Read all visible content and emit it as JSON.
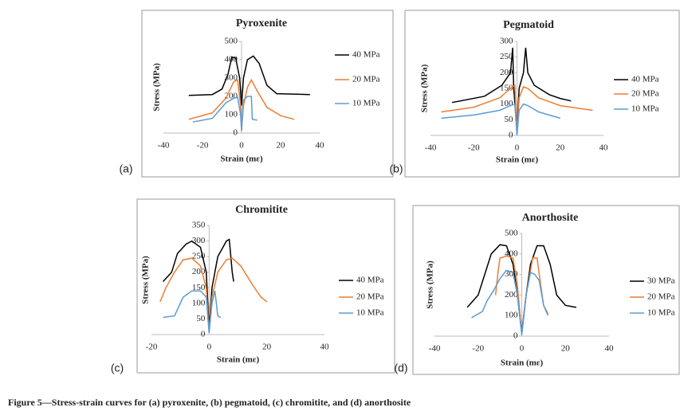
{
  "chart_data": [
    {
      "type": "line",
      "label": "(a)",
      "title": "Pyroxenite",
      "x_label": "Strain (mε)",
      "y_label": "Stress (MPa)",
      "xlim": [
        -40,
        40
      ],
      "ylim": [
        0,
        500
      ],
      "xticks": [
        -40,
        -20,
        0,
        20,
        40
      ],
      "yticks": [
        0,
        100,
        200,
        300,
        400,
        500
      ],
      "series": [
        {
          "name": "40 MPa",
          "color": "#000000",
          "x": [
            -27,
            -15,
            -10,
            -7,
            -5,
            -3,
            -1,
            0,
            1,
            3,
            6,
            9,
            13,
            18,
            35
          ],
          "values": [
            205,
            210,
            240,
            320,
            415,
            410,
            300,
            150,
            300,
            400,
            420,
            380,
            260,
            215,
            210
          ]
        },
        {
          "name": "20 MPa",
          "color": "#ed7d31",
          "x": [
            -27,
            -15,
            -8,
            -4,
            -2,
            -0.5,
            0,
            1,
            3,
            5,
            8,
            13,
            20,
            27
          ],
          "values": [
            75,
            110,
            190,
            280,
            290,
            150,
            20,
            150,
            250,
            290,
            230,
            140,
            95,
            75
          ]
        },
        {
          "name": "10 MPa",
          "color": "#5b9bd5",
          "x": [
            -25,
            -15,
            -8,
            -4,
            -2,
            -0.5,
            0,
            0.5,
            1,
            3,
            5,
            5.5,
            8
          ],
          "values": [
            60,
            80,
            165,
            190,
            195,
            100,
            10,
            100,
            180,
            200,
            200,
            75,
            70
          ]
        }
      ]
    },
    {
      "type": "line",
      "label": "(b)",
      "title": "Pegmatoid",
      "x_label": "Strain (mε)",
      "y_label": "Stress (MPa)",
      "xlim": [
        -40,
        40
      ],
      "ylim": [
        0,
        300
      ],
      "xticks": [
        -40,
        -20,
        0,
        20,
        40
      ],
      "yticks": [
        0,
        50,
        100,
        150,
        200,
        250,
        300
      ],
      "series": [
        {
          "name": "40 MPa",
          "color": "#000000",
          "x": [
            -30,
            -15,
            -7,
            -3,
            -2,
            -1.5,
            0,
            1,
            3,
            4,
            5,
            8,
            15,
            20,
            25
          ],
          "values": [
            105,
            125,
            160,
            200,
            280,
            150,
            20,
            150,
            200,
            280,
            200,
            160,
            130,
            118,
            110
          ]
        },
        {
          "name": "20 MPa",
          "color": "#ed7d31",
          "x": [
            -35,
            -20,
            -8,
            -3,
            -1,
            0,
            1,
            3,
            5,
            10,
            20,
            35
          ],
          "values": [
            75,
            90,
            120,
            150,
            160,
            10,
            120,
            155,
            150,
            120,
            95,
            80
          ]
        },
        {
          "name": "10 MPa",
          "color": "#5b9bd5",
          "x": [
            -35,
            -20,
            -8,
            -3,
            -1,
            0,
            1,
            3,
            5,
            10,
            20
          ],
          "values": [
            55,
            65,
            80,
            95,
            100,
            0,
            80,
            100,
            95,
            75,
            55
          ]
        }
      ]
    },
    {
      "type": "line",
      "label": "(c)",
      "title": "Chromitite",
      "x_label": "Strain (mε)",
      "y_label": "Stress (MPa)",
      "xlim": [
        -20,
        40
      ],
      "ylim": [
        0,
        350
      ],
      "xticks": [
        -20,
        0,
        20,
        40
      ],
      "yticks": [
        0,
        50,
        100,
        150,
        200,
        250,
        300,
        350
      ],
      "series": [
        {
          "name": "40 MPa",
          "color": "#000000",
          "x": [
            -16,
            -13,
            -11,
            -8,
            -6,
            -3,
            -1,
            0,
            1,
            3,
            6,
            7,
            8,
            8.5
          ],
          "values": [
            170,
            200,
            260,
            290,
            300,
            280,
            200,
            20,
            150,
            250,
            300,
            305,
            200,
            170
          ]
        },
        {
          "name": "20 MPa",
          "color": "#ed7d31",
          "x": [
            -17,
            -15,
            -12,
            -9,
            -6,
            -3,
            -1,
            0,
            1,
            3,
            6,
            8,
            11,
            15,
            18,
            20
          ],
          "values": [
            105,
            150,
            200,
            240,
            245,
            220,
            150,
            10,
            120,
            200,
            240,
            245,
            220,
            160,
            120,
            105
          ]
        },
        {
          "name": "10 MPa",
          "color": "#5b9bd5",
          "x": [
            -16,
            -12,
            -9,
            -6,
            -3,
            -1,
            0,
            1,
            2,
            3,
            4
          ],
          "values": [
            55,
            60,
            120,
            140,
            140,
            120,
            5,
            100,
            140,
            60,
            55
          ]
        }
      ]
    },
    {
      "type": "line",
      "label": "(d)",
      "title": "Anorthosite",
      "x_label": "Strain (mε)",
      "y_label": "Stress (MPa)",
      "xlim": [
        -40,
        40
      ],
      "ylim": [
        0,
        500
      ],
      "xticks": [
        -40,
        -20,
        0,
        20,
        40
      ],
      "yticks": [
        0,
        100,
        200,
        300,
        400,
        500
      ],
      "series": [
        {
          "name": "30 MPa",
          "color": "#000000",
          "x": [
            -25,
            -20,
            -17,
            -14,
            -10,
            -7,
            -4,
            -2,
            0,
            2,
            4,
            7,
            10,
            13,
            16,
            20,
            25
          ],
          "values": [
            140,
            200,
            300,
            400,
            445,
            440,
            350,
            200,
            20,
            200,
            350,
            440,
            440,
            350,
            200,
            150,
            140
          ]
        },
        {
          "name": "20 MPa",
          "color": "#ed7d31",
          "x": [
            -12,
            -11,
            -10,
            -7,
            -4,
            -2,
            0,
            2,
            5,
            7,
            8,
            10,
            12
          ],
          "values": [
            200,
            300,
            380,
            390,
            380,
            250,
            10,
            200,
            380,
            380,
            300,
            150,
            110
          ]
        },
        {
          "name": "10 MPa",
          "color": "#5b9bd5",
          "x": [
            -23,
            -18,
            -16,
            -13,
            -10,
            -7,
            -4,
            -2,
            0,
            2,
            4,
            6,
            8,
            10,
            12
          ],
          "values": [
            90,
            120,
            170,
            220,
            280,
            320,
            310,
            200,
            5,
            200,
            310,
            300,
            270,
            150,
            100
          ]
        }
      ]
    }
  ],
  "caption": "Figure 5—Stress-strain curves for (a) pyroxenite, (b) pegmatoid, (c) chromitite, and (d) anorthosite"
}
